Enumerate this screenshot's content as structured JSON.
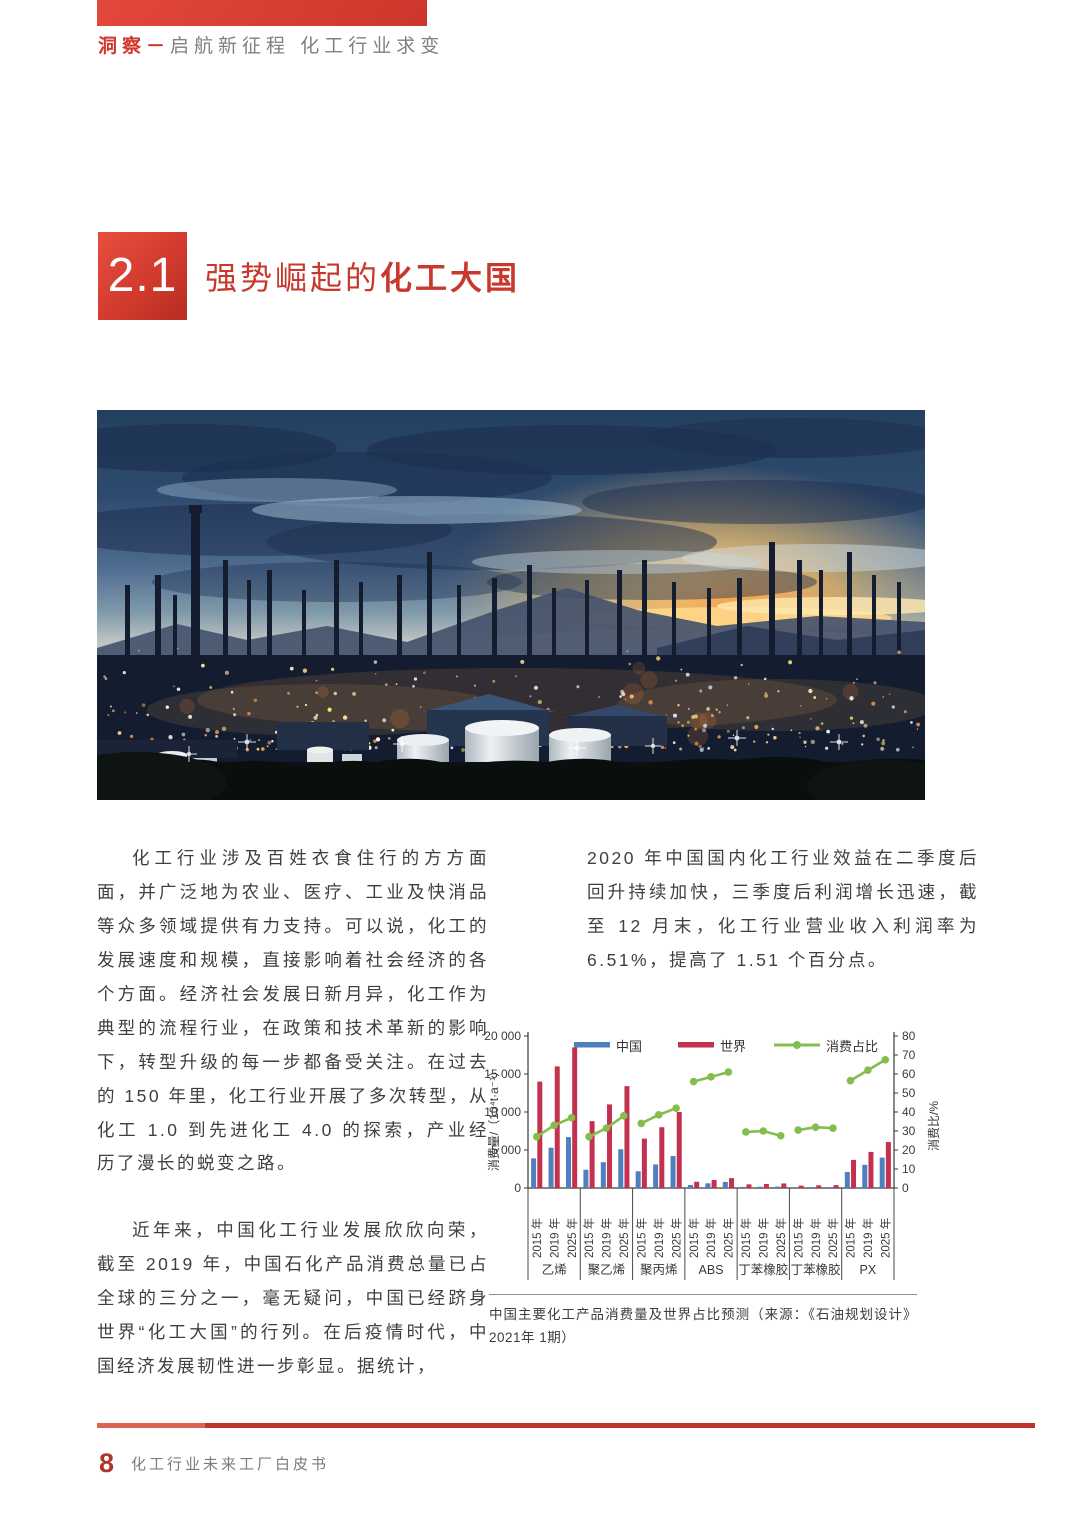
{
  "header": {
    "tag": "洞察－",
    "title": "启航新征程 化工行业求变"
  },
  "section": {
    "number": "2.1",
    "title_regular": "强势崛起的",
    "title_bold": "化工大国"
  },
  "photo": {
    "alt": "refinery-complex-at-dusk"
  },
  "body": {
    "left_para1": "化工行业涉及百姓衣食住行的方方面面，并广泛地为农业、医疗、工业及快消品等众多领域提供有力支持。可以说，化工的发展速度和规模，直接影响着社会经济的各个方面。经济社会发展日新月异，化工作为典型的流程行业，在政策和技术革新的影响下，转型升级的每一步都备受关注。在过去的 150 年里，化工行业开展了多次转型，从化工 1.0 到先进化工 4.0 的探索，产业经历了漫长的蜕变之路。",
    "left_para2": "近年来，中国化工行业发展欣欣向荣，截至 2019 年，中国石化产品消费总量已占全球的三分之一，毫无疑问，中国已经跻身世界“化工大国”的行列。在后疫情时代，中国经济发展韧性进一步彰显。据统计，",
    "right_para1": "2020 年中国国内化工行业效益在二季度后回升持续加快，三季度后利润增长迅速，截至 12 月末，化工行业营业收入利润率为 6.51%，提高了 1.51 个百分点。"
  },
  "caption": "中国主要化工产品消费量及世界占比预测（来源：《石油规划设计》2021年 1期）",
  "footer": {
    "page_number": "8",
    "book_title": "化工行业未来工厂白皮书"
  },
  "chart_data": {
    "type": "bar",
    "subtype": "grouped-bars-with-share-line",
    "title": "",
    "ylabel_left": "消费量/（10⁴t·a⁻¹）",
    "ylabel_right": "消费比/%",
    "ylim_left": [
      0,
      20000
    ],
    "ylim_right": [
      0,
      80
    ],
    "ytick_values_left": [
      0,
      5000,
      10000,
      15000,
      20000
    ],
    "yticks_left": [
      "0",
      "5 000",
      "10 000",
      "15 000",
      "20 000"
    ],
    "yticks_right": [
      0,
      10,
      20,
      30,
      40,
      50,
      60,
      70,
      80
    ],
    "grid": false,
    "legend": [
      "中国",
      "世界",
      "消费占比"
    ],
    "legend_position": "top-inside",
    "colors": {
      "china": "#4f7fbe",
      "world": "#c4314e",
      "share": "#84bd4c"
    },
    "years": [
      "2015 年",
      "2019 年",
      "2025 年"
    ],
    "groups": [
      {
        "name": "乙烯",
        "china": [
          3900,
          5300,
          6700
        ],
        "world": [
          14000,
          16000,
          18500
        ],
        "share": [
          27,
          33,
          37
        ]
      },
      {
        "name": "聚乙烯",
        "china": [
          2400,
          3400,
          5100
        ],
        "world": [
          8800,
          11000,
          13400
        ],
        "share": [
          27,
          31.5,
          38
        ]
      },
      {
        "name": "聚丙烯",
        "china": [
          2200,
          3100,
          4200
        ],
        "world": [
          6500,
          8000,
          10000
        ],
        "share": [
          34,
          38.5,
          42
        ]
      },
      {
        "name": "ABS",
        "china": [
          400,
          620,
          800
        ],
        "world": [
          820,
          1050,
          1300
        ],
        "share": [
          56,
          58.5,
          61
        ]
      },
      {
        "name": "丁苯橡胶",
        "china": [
          150,
          170,
          190
        ],
        "world": [
          480,
          530,
          600
        ],
        "share": [
          29.5,
          30,
          27.5
        ]
      },
      {
        "name": "丁苯橡胶",
        "china": [
          100,
          115,
          125
        ],
        "world": [
          310,
          350,
          380
        ],
        "share": [
          30.5,
          32,
          31.5
        ]
      },
      {
        "name": "PX",
        "china": [
          2100,
          3050,
          4000
        ],
        "world": [
          3700,
          4750,
          6050
        ],
        "share": [
          56.5,
          62,
          67.5
        ]
      }
    ]
  }
}
